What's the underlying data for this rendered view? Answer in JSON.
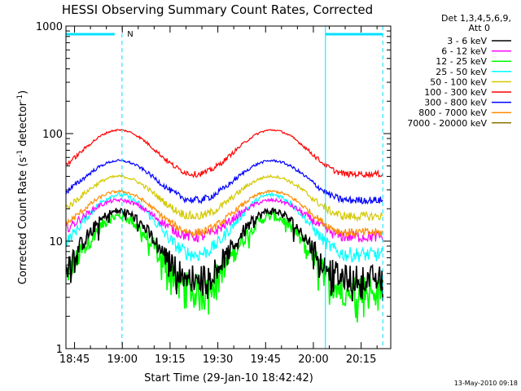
{
  "chart_data": {
    "type": "line",
    "title": "HESSI Observing Summary Count Rates, Corrected",
    "xlabel": "Start Time (29-Jan-10 18:42:42)",
    "ylabel_main": "Corrected Count Rate (s",
    "ylabel_sup1": "-1",
    "ylabel_mid": " detector",
    "ylabel_sup2": "-1",
    "ylabel_end": ")",
    "y_scale": "log",
    "ylim": [
      1,
      1000
    ],
    "xlim_minutes": [
      -2.7,
      99.3
    ],
    "x_ticks": [
      {
        "minutes": 0,
        "label": "18:45"
      },
      {
        "minutes": 15,
        "label": "19:00"
      },
      {
        "minutes": 30,
        "label": "19:15"
      },
      {
        "minutes": 45,
        "label": "19:30"
      },
      {
        "minutes": 60,
        "label": "19:45"
      },
      {
        "minutes": 75,
        "label": "20:00"
      },
      {
        "minutes": 90,
        "label": "20:15"
      }
    ],
    "y_ticks": [
      {
        "value": 1,
        "label": "1"
      },
      {
        "value": 10,
        "label": "10"
      },
      {
        "value": 100,
        "label": "100"
      },
      {
        "value": 1000,
        "label": "1000"
      }
    ],
    "legend_header": [
      "Det 1,3,4,5,6,9,",
      "Att 0"
    ],
    "legend_position": "right",
    "grid": false,
    "series": [
      {
        "name": "3 - 6 keV",
        "color": "#000000",
        "orbit_min": 4.5,
        "orbit_max": 19,
        "noise": 0.09
      },
      {
        "name": "6 - 12 keV",
        "color": "#ff00ff",
        "orbit_min": 11,
        "orbit_max": 24,
        "noise": 0.04
      },
      {
        "name": "12 - 25 keV",
        "color": "#00ff00",
        "orbit_min": 3.5,
        "orbit_max": 17,
        "noise": 0.11
      },
      {
        "name": "25 - 50 keV",
        "color": "#00ffff",
        "orbit_min": 7.5,
        "orbit_max": 27,
        "noise": 0.05
      },
      {
        "name": "50 - 100 keV",
        "color": "#d4c800",
        "orbit_min": 17,
        "orbit_max": 40,
        "noise": 0.03
      },
      {
        "name": "100 - 300 keV",
        "color": "#ff0000",
        "orbit_min": 42,
        "orbit_max": 108,
        "noise": 0.02
      },
      {
        "name": "300 - 800 keV",
        "color": "#0000ff",
        "orbit_min": 24,
        "orbit_max": 56,
        "noise": 0.025
      },
      {
        "name": "800 - 7000 keV",
        "color": "#ff8c00",
        "orbit_min": 12,
        "orbit_max": 29,
        "noise": 0.03
      },
      {
        "name": "7000 - 20000 keV",
        "color": "#8b7500",
        "orbit_min": null,
        "orbit_max": null,
        "noise": 0
      }
    ],
    "orbit_peaks_minutes": [
      14,
      62
    ],
    "orbit_period_minutes": 96,
    "flags": {
      "saa_bars": [
        {
          "start_minutes": -2.7,
          "end_minutes": 12.6,
          "color": "#00e0ff"
        },
        {
          "start_minutes": 78.8,
          "end_minutes": 96.8,
          "color": "#00e0ff"
        }
      ],
      "night_label": "N",
      "night_label_at_minutes": 15.5,
      "solid_markers_minutes": [
        -2.7,
        78.8
      ],
      "dashed_markers_minutes": [
        14.9,
        96.8
      ]
    }
  },
  "footer": {
    "timestamp": "13-May-2010 09:18"
  }
}
